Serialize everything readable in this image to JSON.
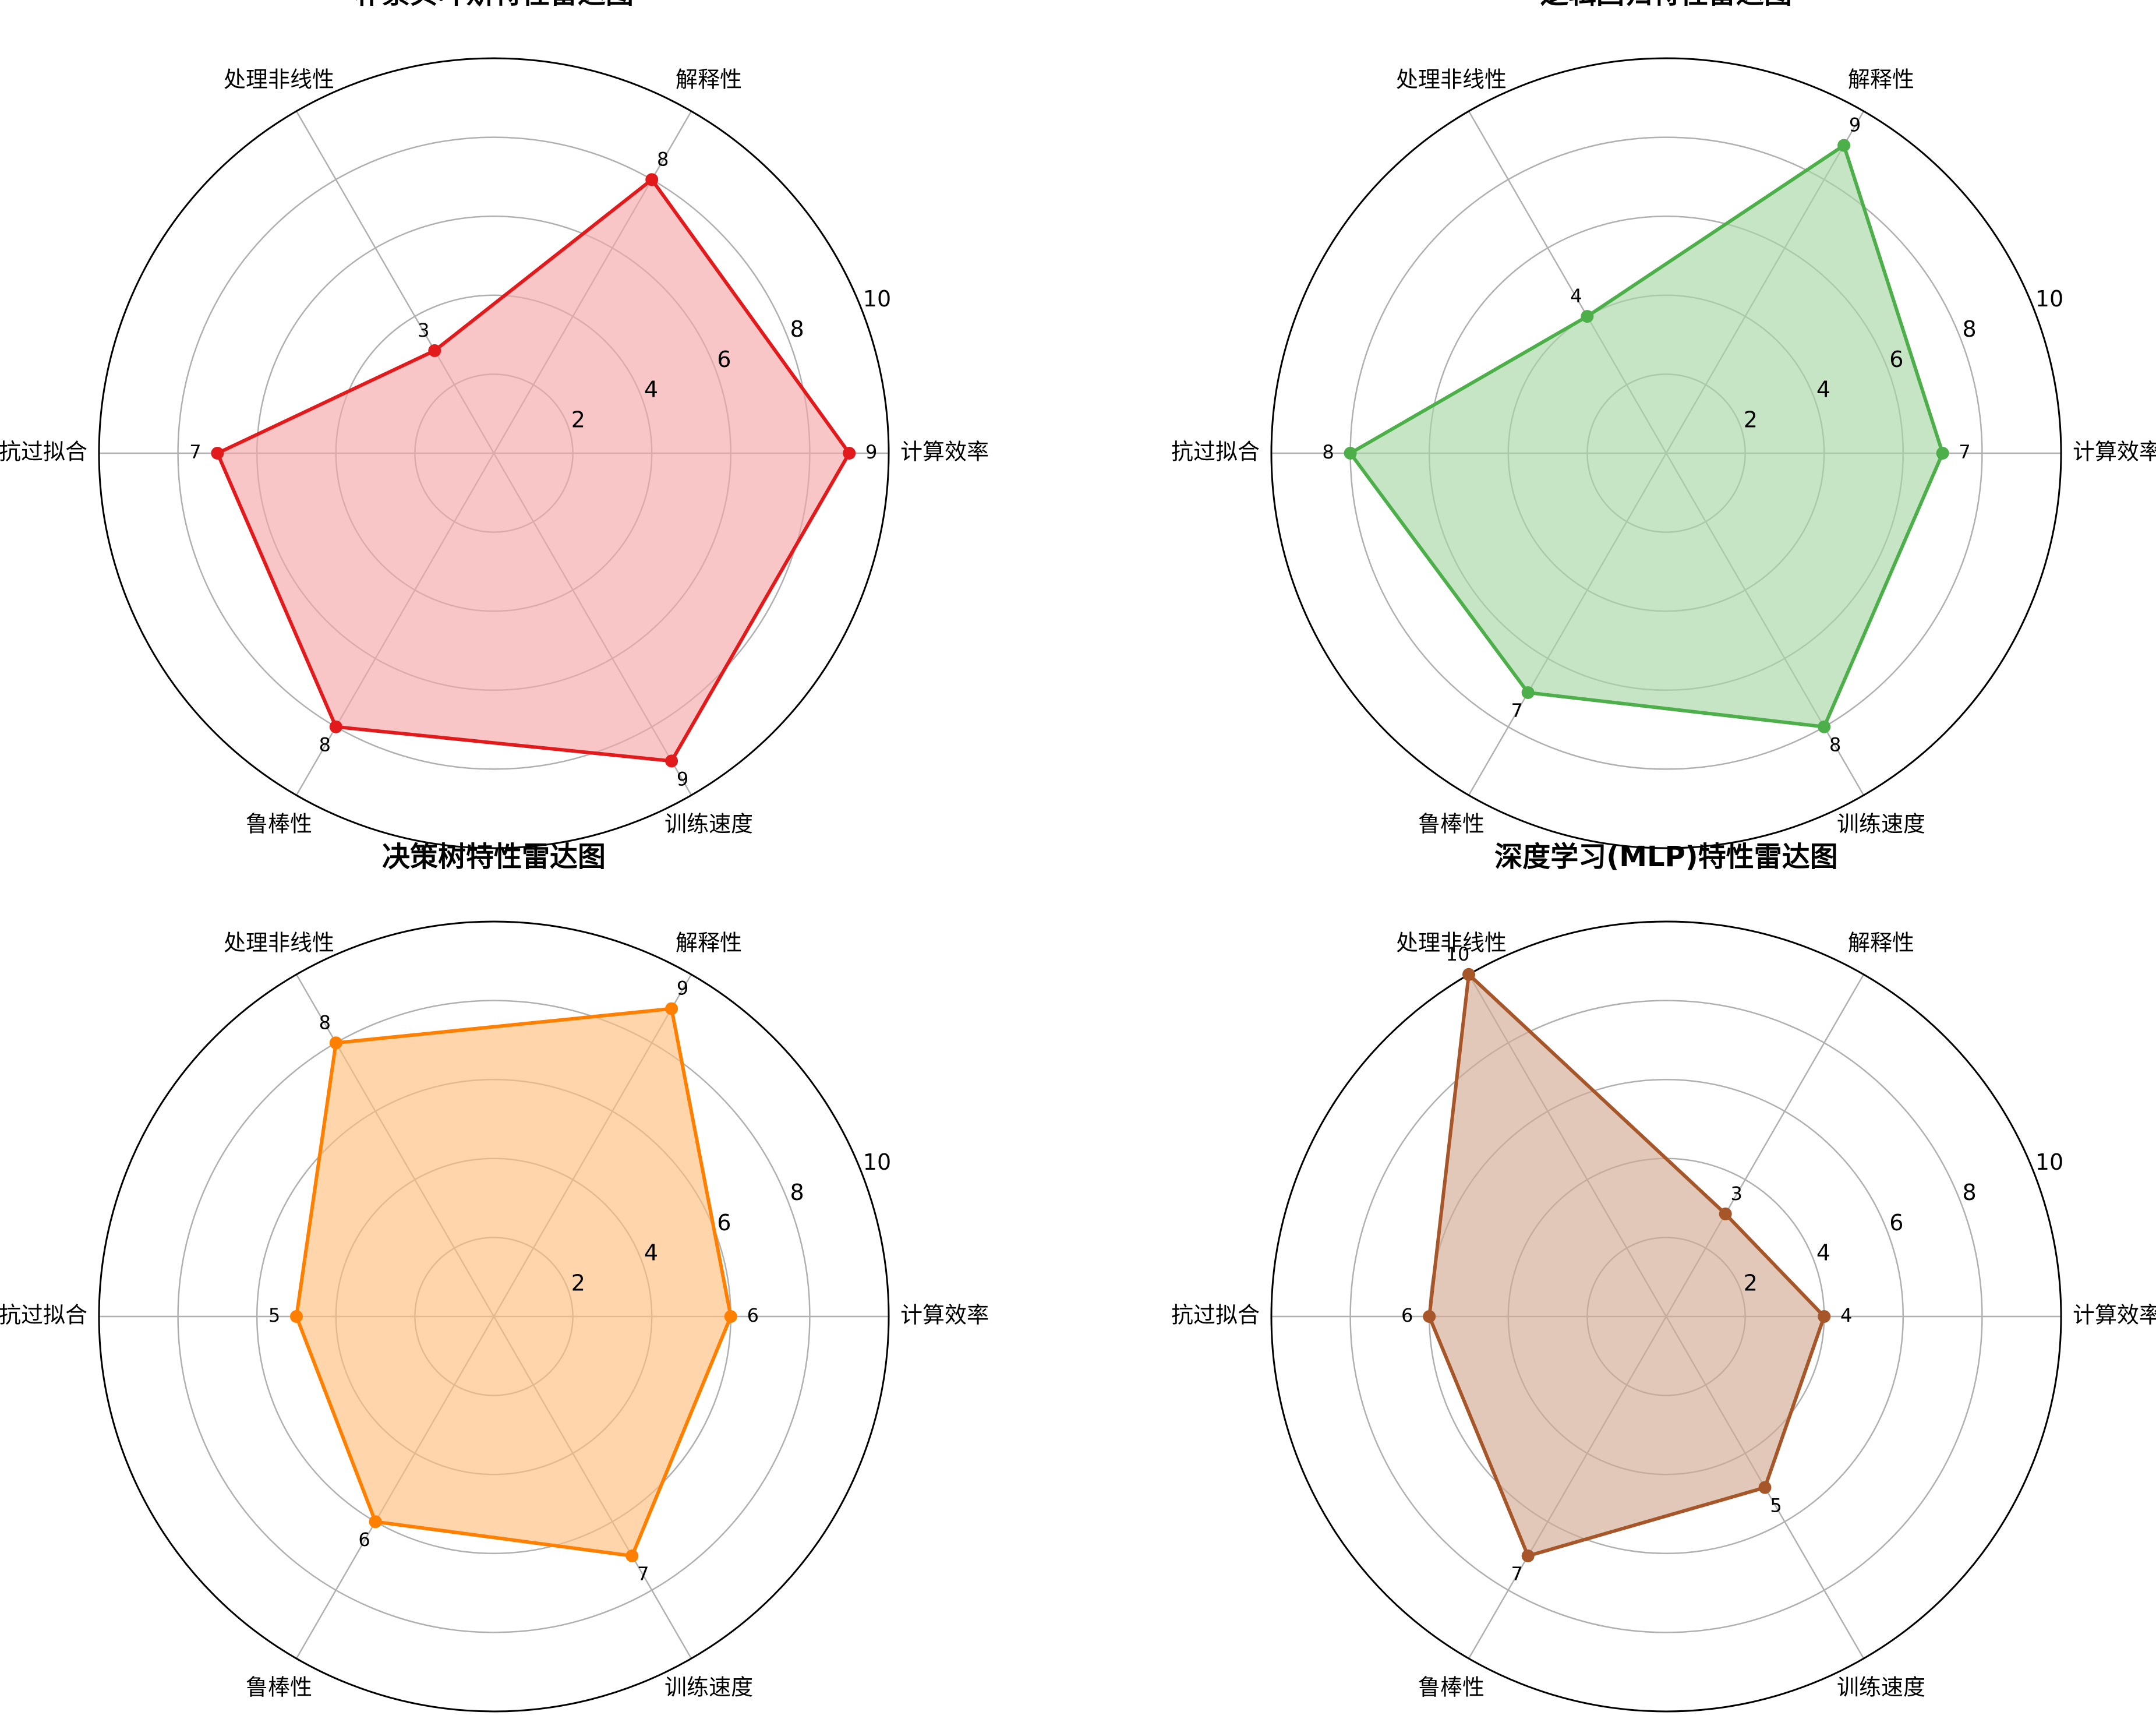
{
  "chart_data": [
    {
      "type": "radar",
      "title": "朴素贝叶斯特性雷达图",
      "categories": [
        "计算效率",
        "解释性",
        "处理非线性",
        "抗过拟合",
        "鲁棒性",
        "训练速度"
      ],
      "values": [
        9,
        8,
        3,
        7,
        8,
        9
      ],
      "color": "#e31a1c",
      "fill_color": "#f4a7a8",
      "rlim": [
        0,
        10
      ],
      "rticks": [
        "2",
        "4",
        "6",
        "8",
        "10"
      ],
      "grid": true
    },
    {
      "type": "radar",
      "title": "逻辑回归特性雷达图",
      "categories": [
        "计算效率",
        "解释性",
        "处理非线性",
        "抗过拟合",
        "鲁棒性",
        "训练速度"
      ],
      "values": [
        7,
        9,
        4,
        8,
        7,
        8
      ],
      "color": "#4daf4a",
      "fill_color": "#a7d7a5",
      "rlim": [
        0,
        10
      ],
      "rticks": [
        "2",
        "4",
        "6",
        "8",
        "10"
      ],
      "grid": true
    },
    {
      "type": "radar",
      "title": "决策树特性雷达图",
      "categories": [
        "计算效率",
        "解释性",
        "处理非线性",
        "抗过拟合",
        "鲁棒性",
        "训练速度"
      ],
      "values": [
        6,
        9,
        8,
        5,
        6,
        7
      ],
      "color": "#ff7f00",
      "fill_color": "#ffbf80",
      "rlim": [
        0,
        10
      ],
      "rticks": [
        "2",
        "4",
        "6",
        "8",
        "10"
      ],
      "grid": true
    },
    {
      "type": "radar",
      "title": "深度学习(MLP)特性雷达图",
      "categories": [
        "计算效率",
        "解释性",
        "处理非线性",
        "抗过拟合",
        "鲁棒性",
        "训练速度"
      ],
      "values": [
        4,
        3,
        10,
        6,
        7,
        5
      ],
      "color": "#a65628",
      "fill_color": "#d2aa93",
      "rlim": [
        0,
        10
      ],
      "rticks": [
        "2",
        "4",
        "6",
        "8",
        "10"
      ],
      "grid": true
    }
  ]
}
